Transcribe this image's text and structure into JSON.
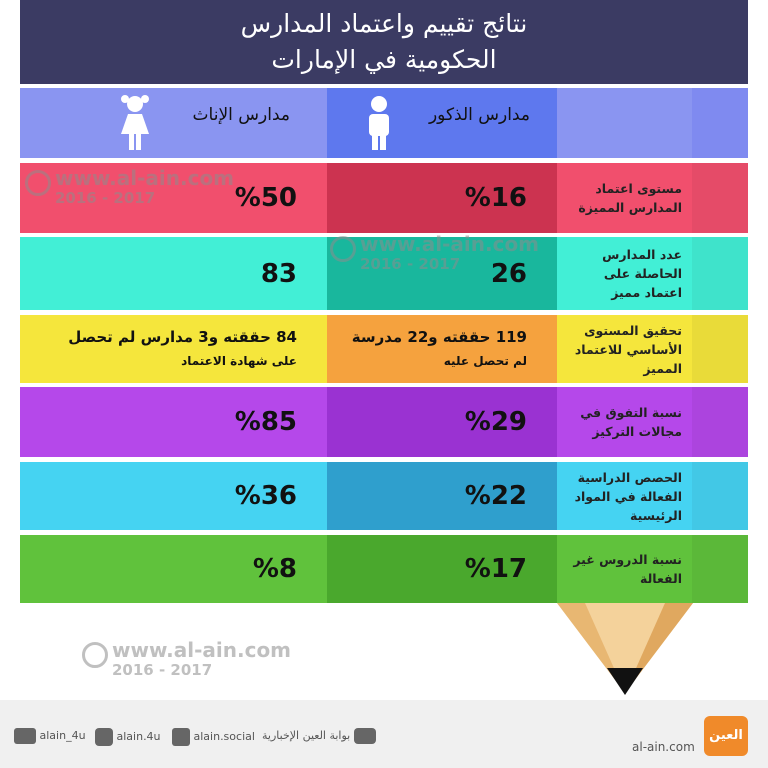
{
  "title": {
    "lines": [
      "نتائج تقييم واعتماد المدارس",
      "الحكومية في الإمارات"
    ]
  },
  "header": {
    "girls": "مدارس الإناث",
    "boys": "مدارس الذكور"
  },
  "rows": [
    {
      "label": [
        "مستوى اعتماد",
        "المدارس المميزة"
      ],
      "boys": [
        "%16"
      ],
      "girls": [
        "%50"
      ],
      "colors": [
        "#f14f6d",
        "#cc3350"
      ]
    },
    {
      "label": [
        "عدد المدارس",
        "الحاصلة على",
        "اعتماد مميز"
      ],
      "boys": [
        "26"
      ],
      "girls": [
        "83"
      ],
      "colors": [
        "#42efd6",
        "#19b79d"
      ]
    },
    {
      "label": [
        "تحقيق المستوى",
        "الأساسي للاعتماد",
        "المميز"
      ],
      "boys": [
        "119 حققته و22 مدرسة",
        "لم تحصل عليه"
      ],
      "girls": [
        "84 حققته و3 مدارس لم تحصل",
        "على شهادة الاعتماد"
      ],
      "colors": [
        "#f5e63c",
        "#f5a23e"
      ]
    },
    {
      "label": [
        "نسبة التفوق في",
        "مجالات التركيز"
      ],
      "boys": [
        "%29"
      ],
      "girls": [
        "%85"
      ],
      "colors": [
        "#b548ea",
        "#9a32d2"
      ]
    },
    {
      "label": [
        "الحصص الدراسية",
        "الفعالة في المواد",
        "الرئيسية"
      ],
      "boys": [
        "%22"
      ],
      "girls": [
        "%36"
      ],
      "colors": [
        "#45d3f2",
        "#2f9fcd"
      ]
    },
    {
      "label": [
        "نسبة الدروس غير",
        "الفعالة"
      ],
      "boys": [
        "%17"
      ],
      "girls": [
        "%8"
      ],
      "colors": [
        "#60c23c",
        "#4aa82d"
      ]
    }
  ],
  "watermark": {
    "site": "www.al-ain.com",
    "years": "2016 - 2017"
  },
  "footer": {
    "twitter": "alain_4u",
    "instagram": "alain.4u",
    "facebook": "alain.social",
    "youtube": "بوابة العين الإخبارية",
    "site": "al-ain.com",
    "logo": "العين"
  }
}
